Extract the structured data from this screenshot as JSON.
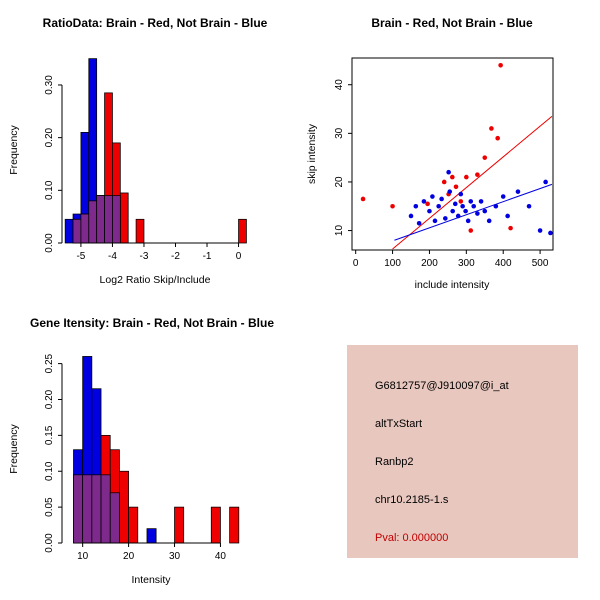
{
  "window": {
    "background": "#ffffff"
  },
  "colors": {
    "brain_red": "#EE0000",
    "not_brain_blue": "#0000E0",
    "overlap_purple": "#7D2A8C",
    "axis_black": "#000000",
    "info_box_bg": "#E8C7BF",
    "pval_red": "#C00000"
  },
  "chart_data": [
    {
      "id": "ratio-histogram",
      "type": "bar",
      "subtype": "overlaid-histogram",
      "title": "RatioData: Brain - Red, Not Brain - Blue",
      "xlabel": "Log2 Ratio Skip/Include",
      "ylabel": "Frequency",
      "xlim": [
        -5.6,
        0.3
      ],
      "ylim": [
        0,
        0.355
      ],
      "xticks": [
        [
          -5,
          "-5"
        ],
        [
          -4,
          "-4"
        ],
        [
          -3,
          "-3"
        ],
        [
          -2,
          "-2"
        ],
        [
          -1,
          "-1"
        ],
        [
          0,
          "0"
        ]
      ],
      "yticks": [
        [
          0,
          "0.00"
        ],
        [
          0.1,
          "0.10"
        ],
        [
          0.2,
          "0.20"
        ],
        [
          0.3,
          "0.30"
        ]
      ],
      "bin_width": 0.25,
      "grid": false,
      "series": [
        {
          "name": "not-brain-blue",
          "color": "#0000E0",
          "bins": [
            [
              -5.5,
              0.045
            ],
            [
              -5.25,
              0.055
            ],
            [
              -5.0,
              0.21
            ],
            [
              -4.75,
              0.35
            ],
            [
              -4.5,
              0.09
            ],
            [
              -4.25,
              0.09
            ],
            [
              -4.0,
              0.09
            ]
          ]
        },
        {
          "name": "brain-red",
          "color": "#EE0000",
          "bins": [
            [
              -5.25,
              0.045
            ],
            [
              -5.0,
              0.055
            ],
            [
              -4.75,
              0.08
            ],
            [
              -4.5,
              0.09
            ],
            [
              -4.25,
              0.285
            ],
            [
              -4.0,
              0.19
            ],
            [
              -3.75,
              0.095
            ],
            [
              -3.25,
              0.045
            ],
            [
              0.0,
              0.045
            ]
          ]
        }
      ],
      "overlap_color": "#7D2A8C"
    },
    {
      "id": "scatter",
      "type": "scatter",
      "title": "Brain - Red, Not Brain - Blue",
      "xlabel": "include intensity",
      "ylabel": "skip intensity",
      "xlim": [
        -10,
        535
      ],
      "ylim": [
        6,
        45.5
      ],
      "xticks": [
        [
          0,
          "0"
        ],
        [
          100,
          "100"
        ],
        [
          200,
          "200"
        ],
        [
          300,
          "300"
        ],
        [
          400,
          "400"
        ],
        [
          500,
          "500"
        ]
      ],
      "yticks": [
        [
          10,
          "10"
        ],
        [
          20,
          "20"
        ],
        [
          30,
          "30"
        ],
        [
          40,
          "40"
        ]
      ],
      "grid": false,
      "box": true,
      "series": [
        {
          "name": "brain-red",
          "color": "#EE0000",
          "points": [
            [
              20,
              16.5
            ],
            [
              100,
              15
            ],
            [
              195,
              15.5
            ],
            [
              240,
              20
            ],
            [
              252,
              17.5
            ],
            [
              262,
              21
            ],
            [
              272,
              19
            ],
            [
              285,
              16
            ],
            [
              300,
              21
            ],
            [
              312,
              10
            ],
            [
              330,
              21.5
            ],
            [
              350,
              25
            ],
            [
              368,
              31
            ],
            [
              385,
              29
            ],
            [
              393,
              44
            ],
            [
              420,
              10.5
            ]
          ],
          "line": {
            "x1": 100,
            "y1": 6.2,
            "x2": 532,
            "y2": 33.5
          }
        },
        {
          "name": "not-brain-blue",
          "color": "#0000E0",
          "points": [
            [
              150,
              13
            ],
            [
              163,
              15
            ],
            [
              172,
              11.5
            ],
            [
              185,
              16
            ],
            [
              200,
              14
            ],
            [
              208,
              17
            ],
            [
              215,
              12
            ],
            [
              225,
              15
            ],
            [
              233,
              16.5
            ],
            [
              243,
              12.5
            ],
            [
              252,
              22
            ],
            [
              255,
              18
            ],
            [
              263,
              14
            ],
            [
              270,
              15.5
            ],
            [
              278,
              13
            ],
            [
              285,
              17.5
            ],
            [
              290,
              15
            ],
            [
              298,
              14
            ],
            [
              305,
              12
            ],
            [
              312,
              16
            ],
            [
              320,
              15
            ],
            [
              330,
              13.5
            ],
            [
              340,
              16
            ],
            [
              350,
              14
            ],
            [
              362,
              12
            ],
            [
              380,
              15
            ],
            [
              400,
              17
            ],
            [
              412,
              13
            ],
            [
              440,
              18
            ],
            [
              470,
              15
            ],
            [
              500,
              10
            ],
            [
              515,
              20
            ],
            [
              528,
              9.5
            ]
          ],
          "line": {
            "x1": 105,
            "y1": 8,
            "x2": 532,
            "y2": 19.5
          }
        }
      ]
    },
    {
      "id": "intensity-histogram",
      "type": "bar",
      "subtype": "overlaid-histogram",
      "title": "Gene Itensity: Brain - Red, Not Brain - Blue",
      "xlabel": "Intensity",
      "ylabel": "Frequency",
      "xlim": [
        5.5,
        46
      ],
      "ylim": [
        0,
        0.262
      ],
      "xticks": [
        [
          10,
          "10"
        ],
        [
          20,
          "20"
        ],
        [
          30,
          "30"
        ],
        [
          40,
          "40"
        ]
      ],
      "yticks": [
        [
          0,
          "0.00"
        ],
        [
          0.05,
          "0.05"
        ],
        [
          0.1,
          "0.10"
        ],
        [
          0.15,
          "0.15"
        ],
        [
          0.2,
          "0.20"
        ],
        [
          0.25,
          "0.25"
        ]
      ],
      "bin_width": 2,
      "grid": false,
      "series": [
        {
          "name": "not-brain-blue",
          "color": "#0000E0",
          "bins": [
            [
              8,
              0.13
            ],
            [
              10,
              0.26
            ],
            [
              12,
              0.215
            ],
            [
              14,
              0.095
            ],
            [
              16,
              0.07
            ],
            [
              24,
              0.02
            ]
          ]
        },
        {
          "name": "brain-red",
          "color": "#EE0000",
          "bins": [
            [
              8,
              0.095
            ],
            [
              10,
              0.095
            ],
            [
              12,
              0.095
            ],
            [
              14,
              0.15
            ],
            [
              16,
              0.13
            ],
            [
              18,
              0.1
            ],
            [
              20,
              0.05
            ],
            [
              30,
              0.05
            ],
            [
              38,
              0.05
            ],
            [
              42,
              0.05
            ]
          ]
        }
      ],
      "overlap_color": "#7D2A8C"
    }
  ],
  "info_panel": {
    "bg_color": "#E8C7BF",
    "lines": [
      {
        "text": "G6812757@J910097@i_at",
        "color": "#000000"
      },
      {
        "text": "altTxStart",
        "color": "#000000"
      },
      {
        "text": "Ranbp2",
        "color": "#000000"
      },
      {
        "text": "chr10.2185-1.s",
        "color": "#000000"
      },
      {
        "text": "Pval: 0.000000",
        "color": "#C00000"
      }
    ]
  }
}
